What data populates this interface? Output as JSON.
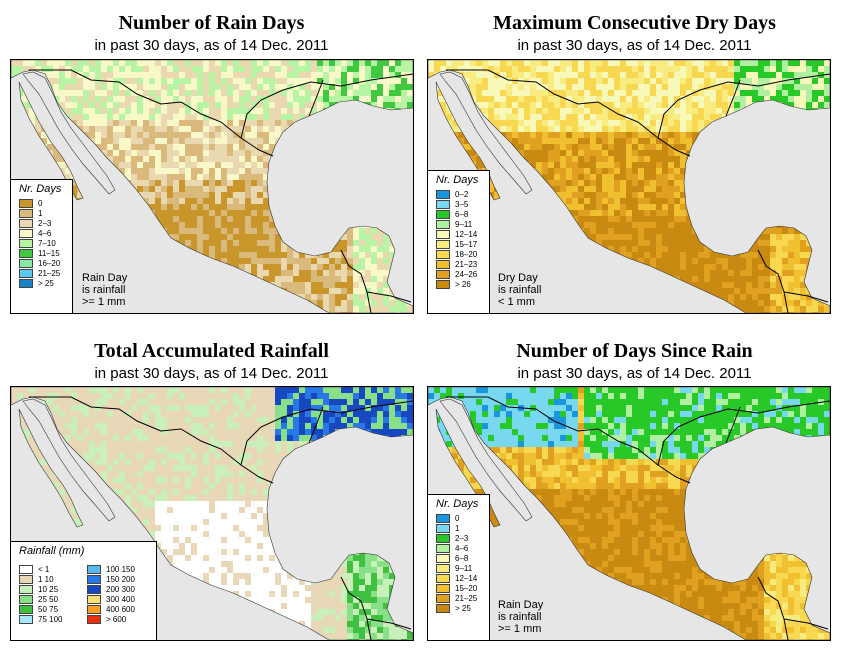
{
  "panels": {
    "rain_days": {
      "title": "Number of Rain Days",
      "subtitle": "in past 30 days, as of  14 Dec. 2011",
      "legend_title": "Nr. Days",
      "legend": [
        {
          "label": "0",
          "color": "#c8962a"
        },
        {
          "label": "1",
          "color": "#d9b97c"
        },
        {
          "label": "2–3",
          "color": "#ead8b0"
        },
        {
          "label": "4–6",
          "color": "#f8f8c8"
        },
        {
          "label": "7–10",
          "color": "#b7f5a4"
        },
        {
          "label": "11–15",
          "color": "#40c840"
        },
        {
          "label": "16–20",
          "color": "#8ae8a2"
        },
        {
          "label": "21–25",
          "color": "#5ac8f0"
        },
        {
          "label": "> 25",
          "color": "#1a82c8"
        }
      ],
      "note": [
        "Rain Day",
        "is rainfall",
        ">= 1 mm"
      ]
    },
    "dry_days": {
      "title": "Maximum Consecutive Dry Days",
      "subtitle": "in past 30 days, as of  14 Dec. 2011",
      "legend_title": "Nr. Days",
      "legend": [
        {
          "label": "0–2",
          "color": "#1a96e0"
        },
        {
          "label": "3–5",
          "color": "#78d8f0"
        },
        {
          "label": "6–8",
          "color": "#28c828"
        },
        {
          "label": "9–11",
          "color": "#b0f0a0"
        },
        {
          "label": "12–14",
          "color": "#f8f8b8"
        },
        {
          "label": "15–17",
          "color": "#f8ec80"
        },
        {
          "label": "18–20",
          "color": "#f8d850"
        },
        {
          "label": "21–23",
          "color": "#f0c030"
        },
        {
          "label": "24–26",
          "color": "#e0a020"
        },
        {
          "label": "> 26",
          "color": "#c88a10"
        }
      ],
      "note": [
        "Dry Day",
        "is rainfall",
        "< 1 mm"
      ]
    },
    "rainfall": {
      "title": "Total Accumulated Rainfall",
      "subtitle": "in past 30 days, as of  14 Dec. 2011",
      "legend_title": "Rainfall (mm)",
      "legend_left": [
        {
          "label": "< 1",
          "color": "#ffffff"
        },
        {
          "label": "1    10",
          "color": "#e8d8b8"
        },
        {
          "label": "10    25",
          "color": "#c8f0b8"
        },
        {
          "label": "25    50",
          "color": "#88e088"
        },
        {
          "label": "50    75",
          "color": "#40c040"
        },
        {
          "label": "75   100",
          "color": "#a8e8f8"
        }
      ],
      "legend_right": [
        {
          "label": "100   150",
          "color": "#58b8f0"
        },
        {
          "label": "150   200",
          "color": "#2878e8"
        },
        {
          "label": "200   300",
          "color": "#1848c0"
        },
        {
          "label": "300   400",
          "color": "#f8e078"
        },
        {
          "label": "400   600",
          "color": "#f8a020"
        },
        {
          "label": "> 600",
          "color": "#e83010"
        }
      ]
    },
    "since_rain": {
      "title": "Number of Days Since Rain",
      "subtitle": "in past 30 days, as of  14 Dec. 2011",
      "legend_title": "Nr. Days",
      "legend": [
        {
          "label": "0",
          "color": "#1a96e0"
        },
        {
          "label": "1",
          "color": "#78d8f0"
        },
        {
          "label": "2–3",
          "color": "#28c828"
        },
        {
          "label": "4–6",
          "color": "#b0f0a0"
        },
        {
          "label": "6–8",
          "color": "#f8f8b8"
        },
        {
          "label": "9–11",
          "color": "#f8ec80"
        },
        {
          "label": "12–14",
          "color": "#f8d850"
        },
        {
          "label": "15–20",
          "color": "#f0c030"
        },
        {
          "label": "21–25",
          "color": "#e0a020"
        },
        {
          "label": "> 25",
          "color": "#c88a10"
        }
      ],
      "note": [
        "Rain Day",
        "is rainfall",
        ">= 1 mm"
      ]
    }
  },
  "map_colors": {
    "ocean": "#e6e6e6",
    "gulf": "#e6e6e6",
    "border": "#000000"
  }
}
